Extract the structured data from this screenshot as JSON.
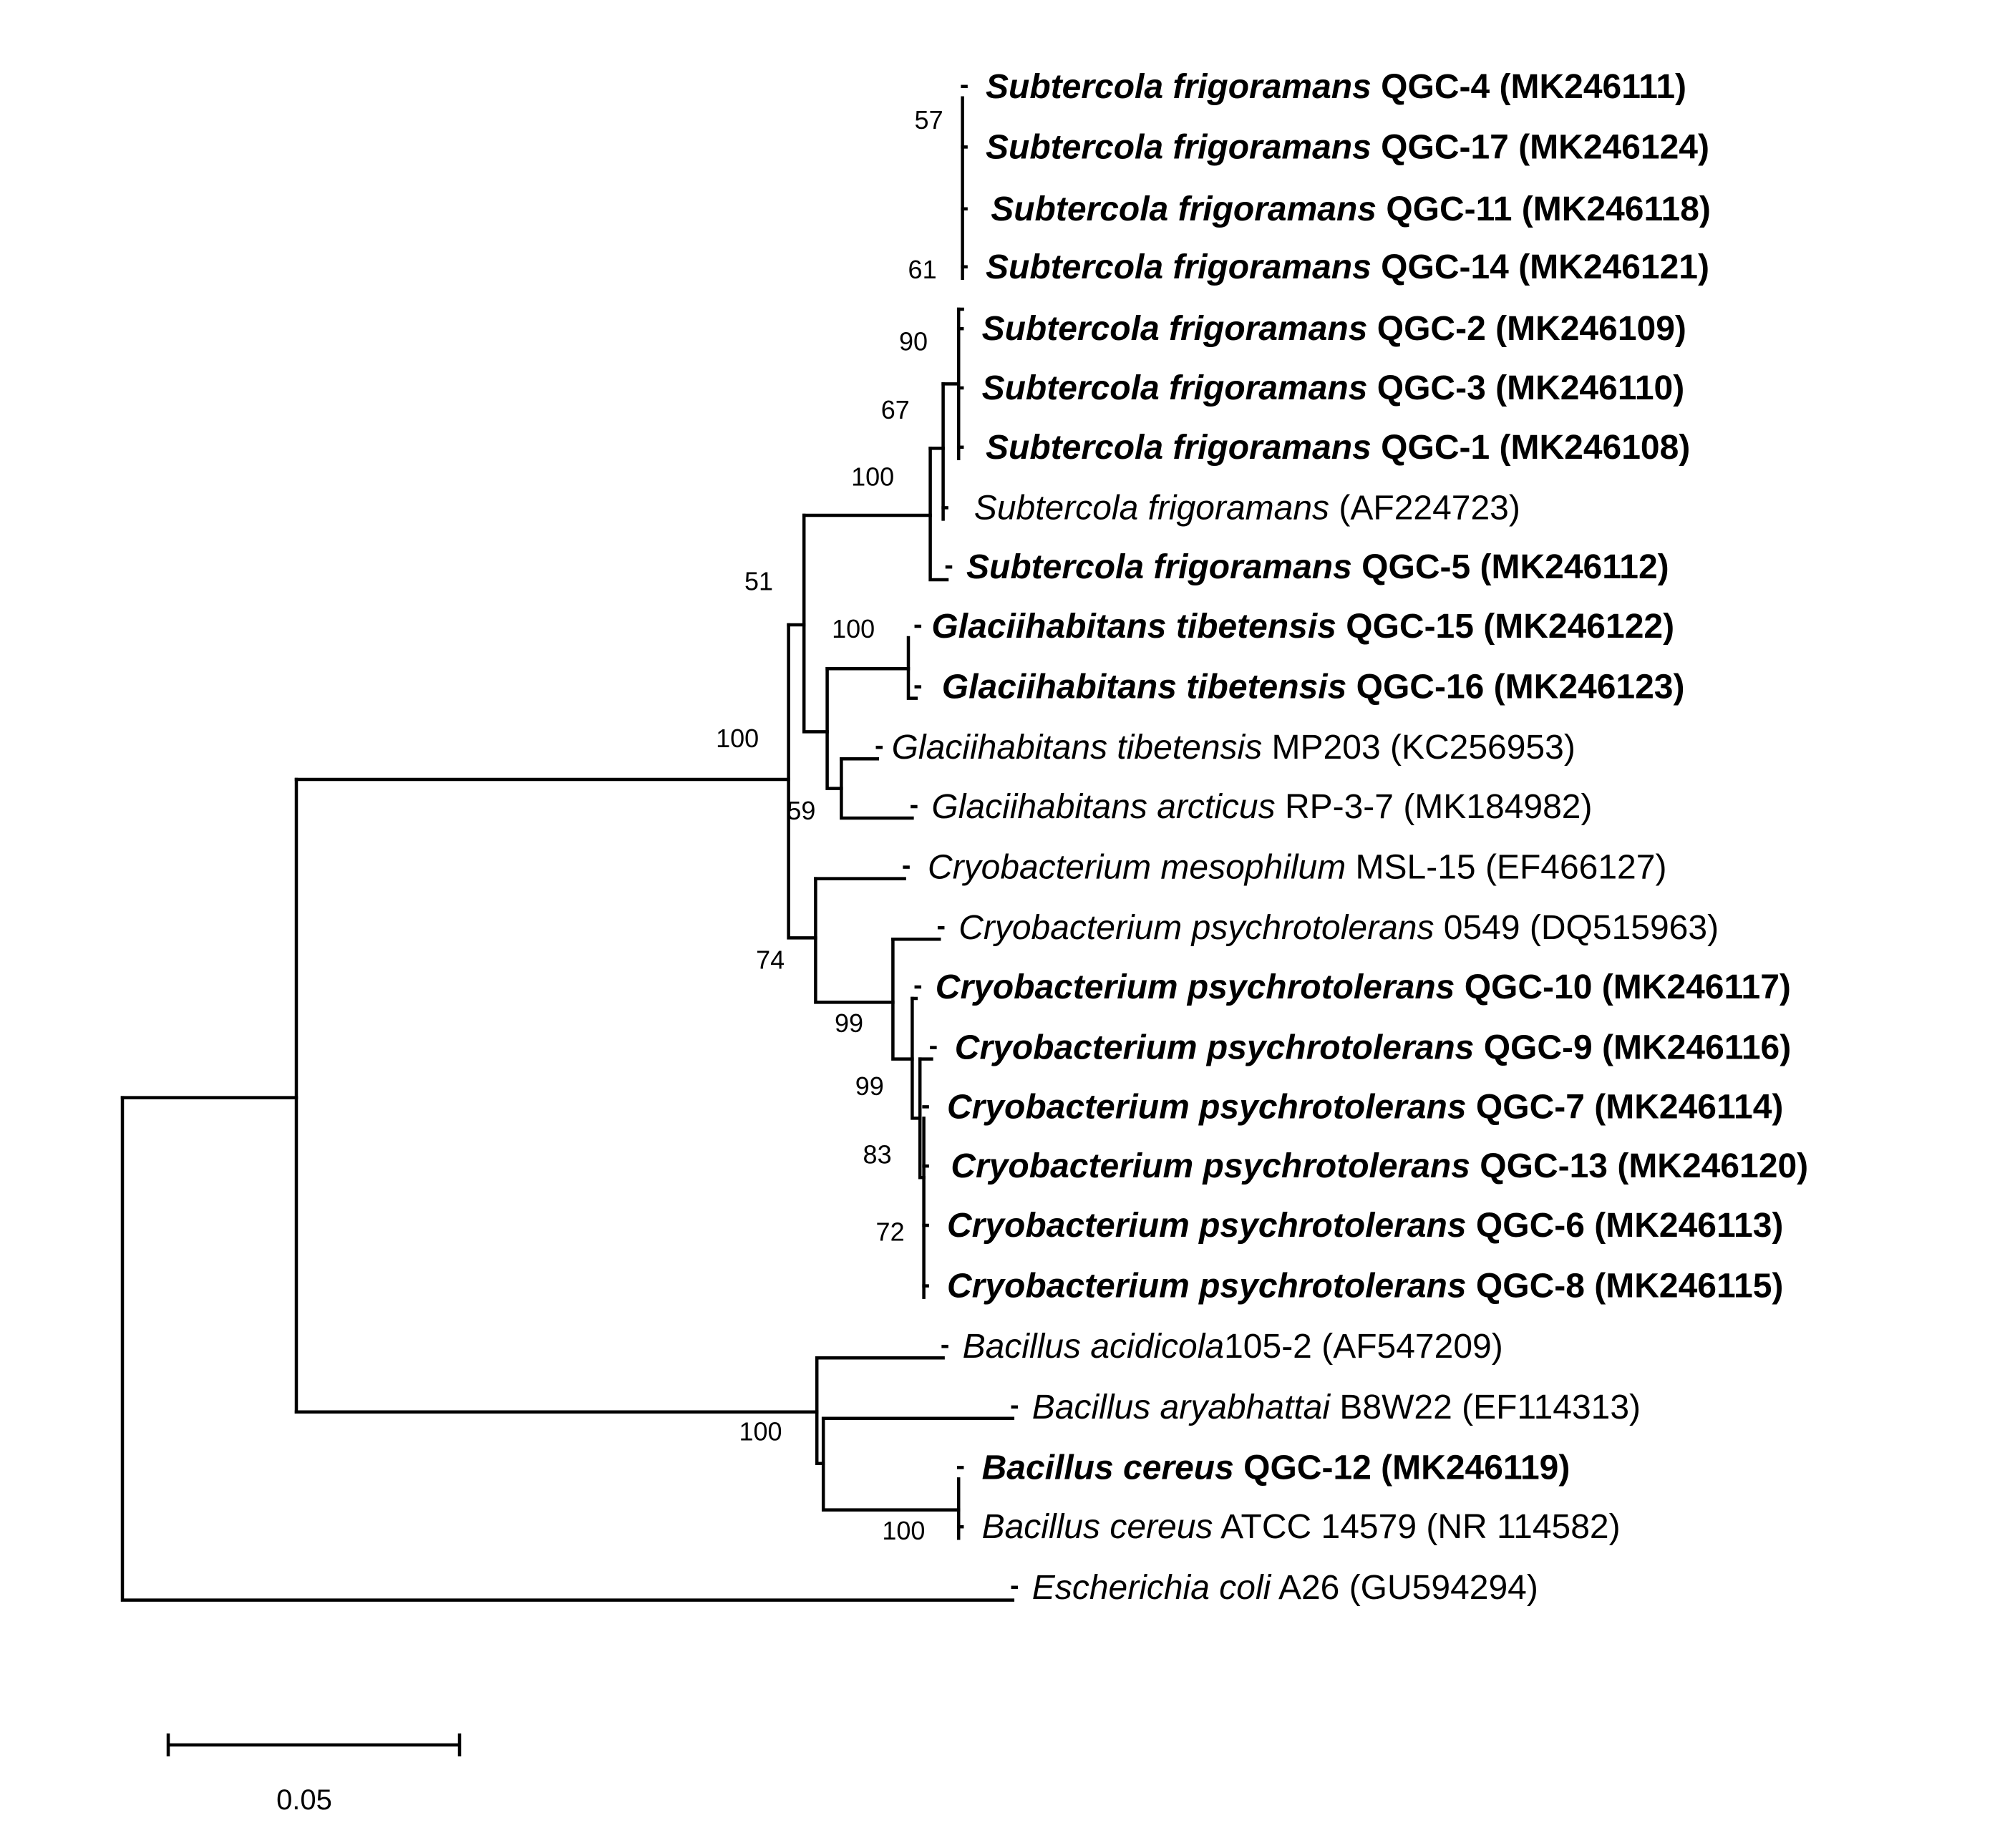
{
  "tree": {
    "leaves": [
      {
        "species": "Subtercola frigoramans",
        "strain": " QGC-4 (MK246111)",
        "bold": true
      },
      {
        "species": "Subtercola frigoramans",
        "strain": " QGC-17 (MK246124)",
        "bold": true
      },
      {
        "species": "Subtercola frigoramans",
        "strain": " QGC-11 (MK246118)",
        "bold": true
      },
      {
        "species": "Subtercola frigoramans",
        "strain": " QGC-14 (MK246121)",
        "bold": true
      },
      {
        "species": "Subtercola frigoramans",
        "strain": " QGC-2 (MK246109)",
        "bold": true
      },
      {
        "species": "Subtercola frigoramans",
        "strain": " QGC-3 (MK246110)",
        "bold": true
      },
      {
        "species": "Subtercola frigoramans",
        "strain": " QGC-1 (MK246108)",
        "bold": true
      },
      {
        "species": "Subtercola frigoramans",
        "strain": " (AF224723)",
        "bold": false
      },
      {
        "species": "Subtercola frigoramans",
        "strain": " QGC-5 (MK246112)",
        "bold": true
      },
      {
        "species": "Glaciihabitans tibetensis",
        "strain": " QGC-15 (MK246122)",
        "bold": true
      },
      {
        "species": "Glaciihabitans tibetensis",
        "strain": " QGC-16 (MK246123)",
        "bold": true
      },
      {
        "species": "Glaciihabitans tibetensis",
        "strain": " MP203 (KC256953)",
        "bold": false
      },
      {
        "species": "Glaciihabitans arcticus",
        "strain": " RP-3-7 (MK184982)",
        "bold": false
      },
      {
        "species": "Cryobacterium mesophilum",
        "strain": " MSL-15 (EF466127)",
        "bold": false
      },
      {
        "species": "Cryobacterium psychrotolerans",
        "strain": " 0549 (DQ515963)",
        "bold": false
      },
      {
        "species": "Cryobacterium psychrotolerans",
        "strain": " QGC-10 (MK246117)",
        "bold": true
      },
      {
        "species": "Cryobacterium psychrotolerans",
        "strain": " QGC-9 (MK246116)",
        "bold": true
      },
      {
        "species": "Cryobacterium psychrotolerans",
        "strain": " QGC-7 (MK246114)",
        "bold": true
      },
      {
        "species": "Cryobacterium psychrotolerans",
        "strain": " QGC-13 (MK246120)",
        "bold": true
      },
      {
        "species": "Cryobacterium psychrotolerans",
        "strain": " QGC-6 (MK246113)",
        "bold": true
      },
      {
        "species": "Cryobacterium psychrotolerans",
        "strain": " QGC-8 (MK246115)",
        "bold": true
      },
      {
        "species": "Bacillus acidicola",
        "strain": "105-2 (AF547209)",
        "bold": false
      },
      {
        "species": "Bacillus aryabhattai",
        "strain": " B8W22 (EF114313)",
        "bold": false
      },
      {
        "species": "Bacillus cereus",
        "strain": " QGC-12 (MK246119)",
        "bold": true
      },
      {
        "species": "Bacillus cereus",
        "strain": " ATCC 14579 (NR 114582)",
        "bold": false
      },
      {
        "species": "Escherichia coli",
        "strain": " A26 (GU594294)",
        "bold": false
      }
    ],
    "support_values": [
      "57",
      "61",
      "90",
      "67",
      "100",
      "51",
      "100",
      "100",
      "59",
      "74",
      "99",
      "99",
      "83",
      "72",
      "100",
      "100"
    ],
    "scale_bar": {
      "label": "0.05"
    }
  }
}
